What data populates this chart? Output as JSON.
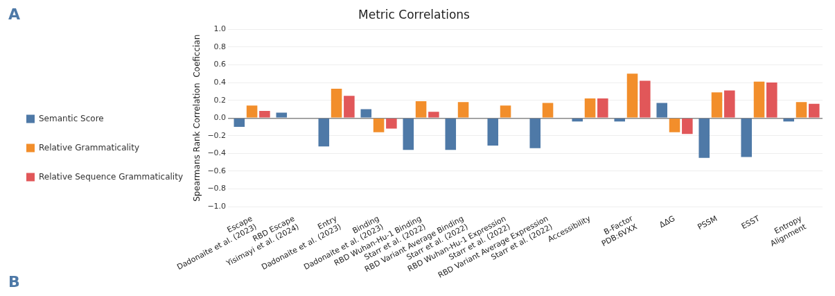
{
  "chart_data": {
    "type": "bar",
    "title": "Metric Correlations",
    "ylabel": "Spearmans Rank Correlation  Coeficcian",
    "categories": [
      "Escape\nDadonaite et al. (2023)",
      "RBD Escape\nYisimayi et al. (2024)",
      "Entry\nDadonaite et al. (2023)",
      "Binding\nDadonaite et al. (2023)",
      "RBD Wuhan-Hu-1 Binding\nStarr et al. (2022)",
      "RBD Variant Average Binding\nStarr et al. (2022)",
      "RBD Wuhan-Hu-1 Expression\nStarr et al. (2022)",
      "RBD Variant Average Expression\nStarr et al. (2022)",
      "Accessibility",
      "B-Factor\nPDB:6VXX",
      "ΔΔG",
      "PSSM",
      "ESST",
      "Entropy\nAlignment"
    ],
    "series": [
      {
        "name": "Semantic Score",
        "color": "#4e79a7",
        "values": [
          -0.1,
          0.06,
          -0.32,
          0.1,
          -0.36,
          -0.36,
          -0.31,
          -0.34,
          -0.04,
          -0.04,
          0.17,
          -0.45,
          -0.44,
          -0.04
        ]
      },
      {
        "name": "Relative Grammaticality",
        "color": "#f28e2b",
        "values": [
          0.14,
          null,
          0.33,
          -0.16,
          0.19,
          0.18,
          0.14,
          0.17,
          0.22,
          0.5,
          -0.16,
          0.29,
          0.41,
          0.18
        ]
      },
      {
        "name": "Relative Sequence Grammaticality",
        "color": "#e15759",
        "values": [
          0.08,
          null,
          0.25,
          -0.12,
          0.07,
          null,
          null,
          null,
          0.22,
          0.42,
          -0.18,
          0.31,
          0.4,
          0.16
        ]
      }
    ],
    "ylim": [
      -1,
      1
    ],
    "yticks": [
      {
        "value": -1,
        "label": "−1.0"
      },
      {
        "value": -0.8,
        "label": "−0.8"
      },
      {
        "value": -0.6,
        "label": "−0.6"
      },
      {
        "value": -0.4,
        "label": "−0.4"
      },
      {
        "value": -0.2,
        "label": "−0.2"
      },
      {
        "value": 0,
        "label": "0.0"
      },
      {
        "value": 0.2,
        "label": "0.2"
      },
      {
        "value": 0.4,
        "label": "0.4"
      },
      {
        "value": 0.6,
        "label": "0.6"
      },
      {
        "value": 0.8,
        "label": "0.8"
      },
      {
        "value": 1,
        "label": "1.0"
      }
    ],
    "grid": "y",
    "legend": "left",
    "annotations": [
      "A",
      "B"
    ]
  }
}
